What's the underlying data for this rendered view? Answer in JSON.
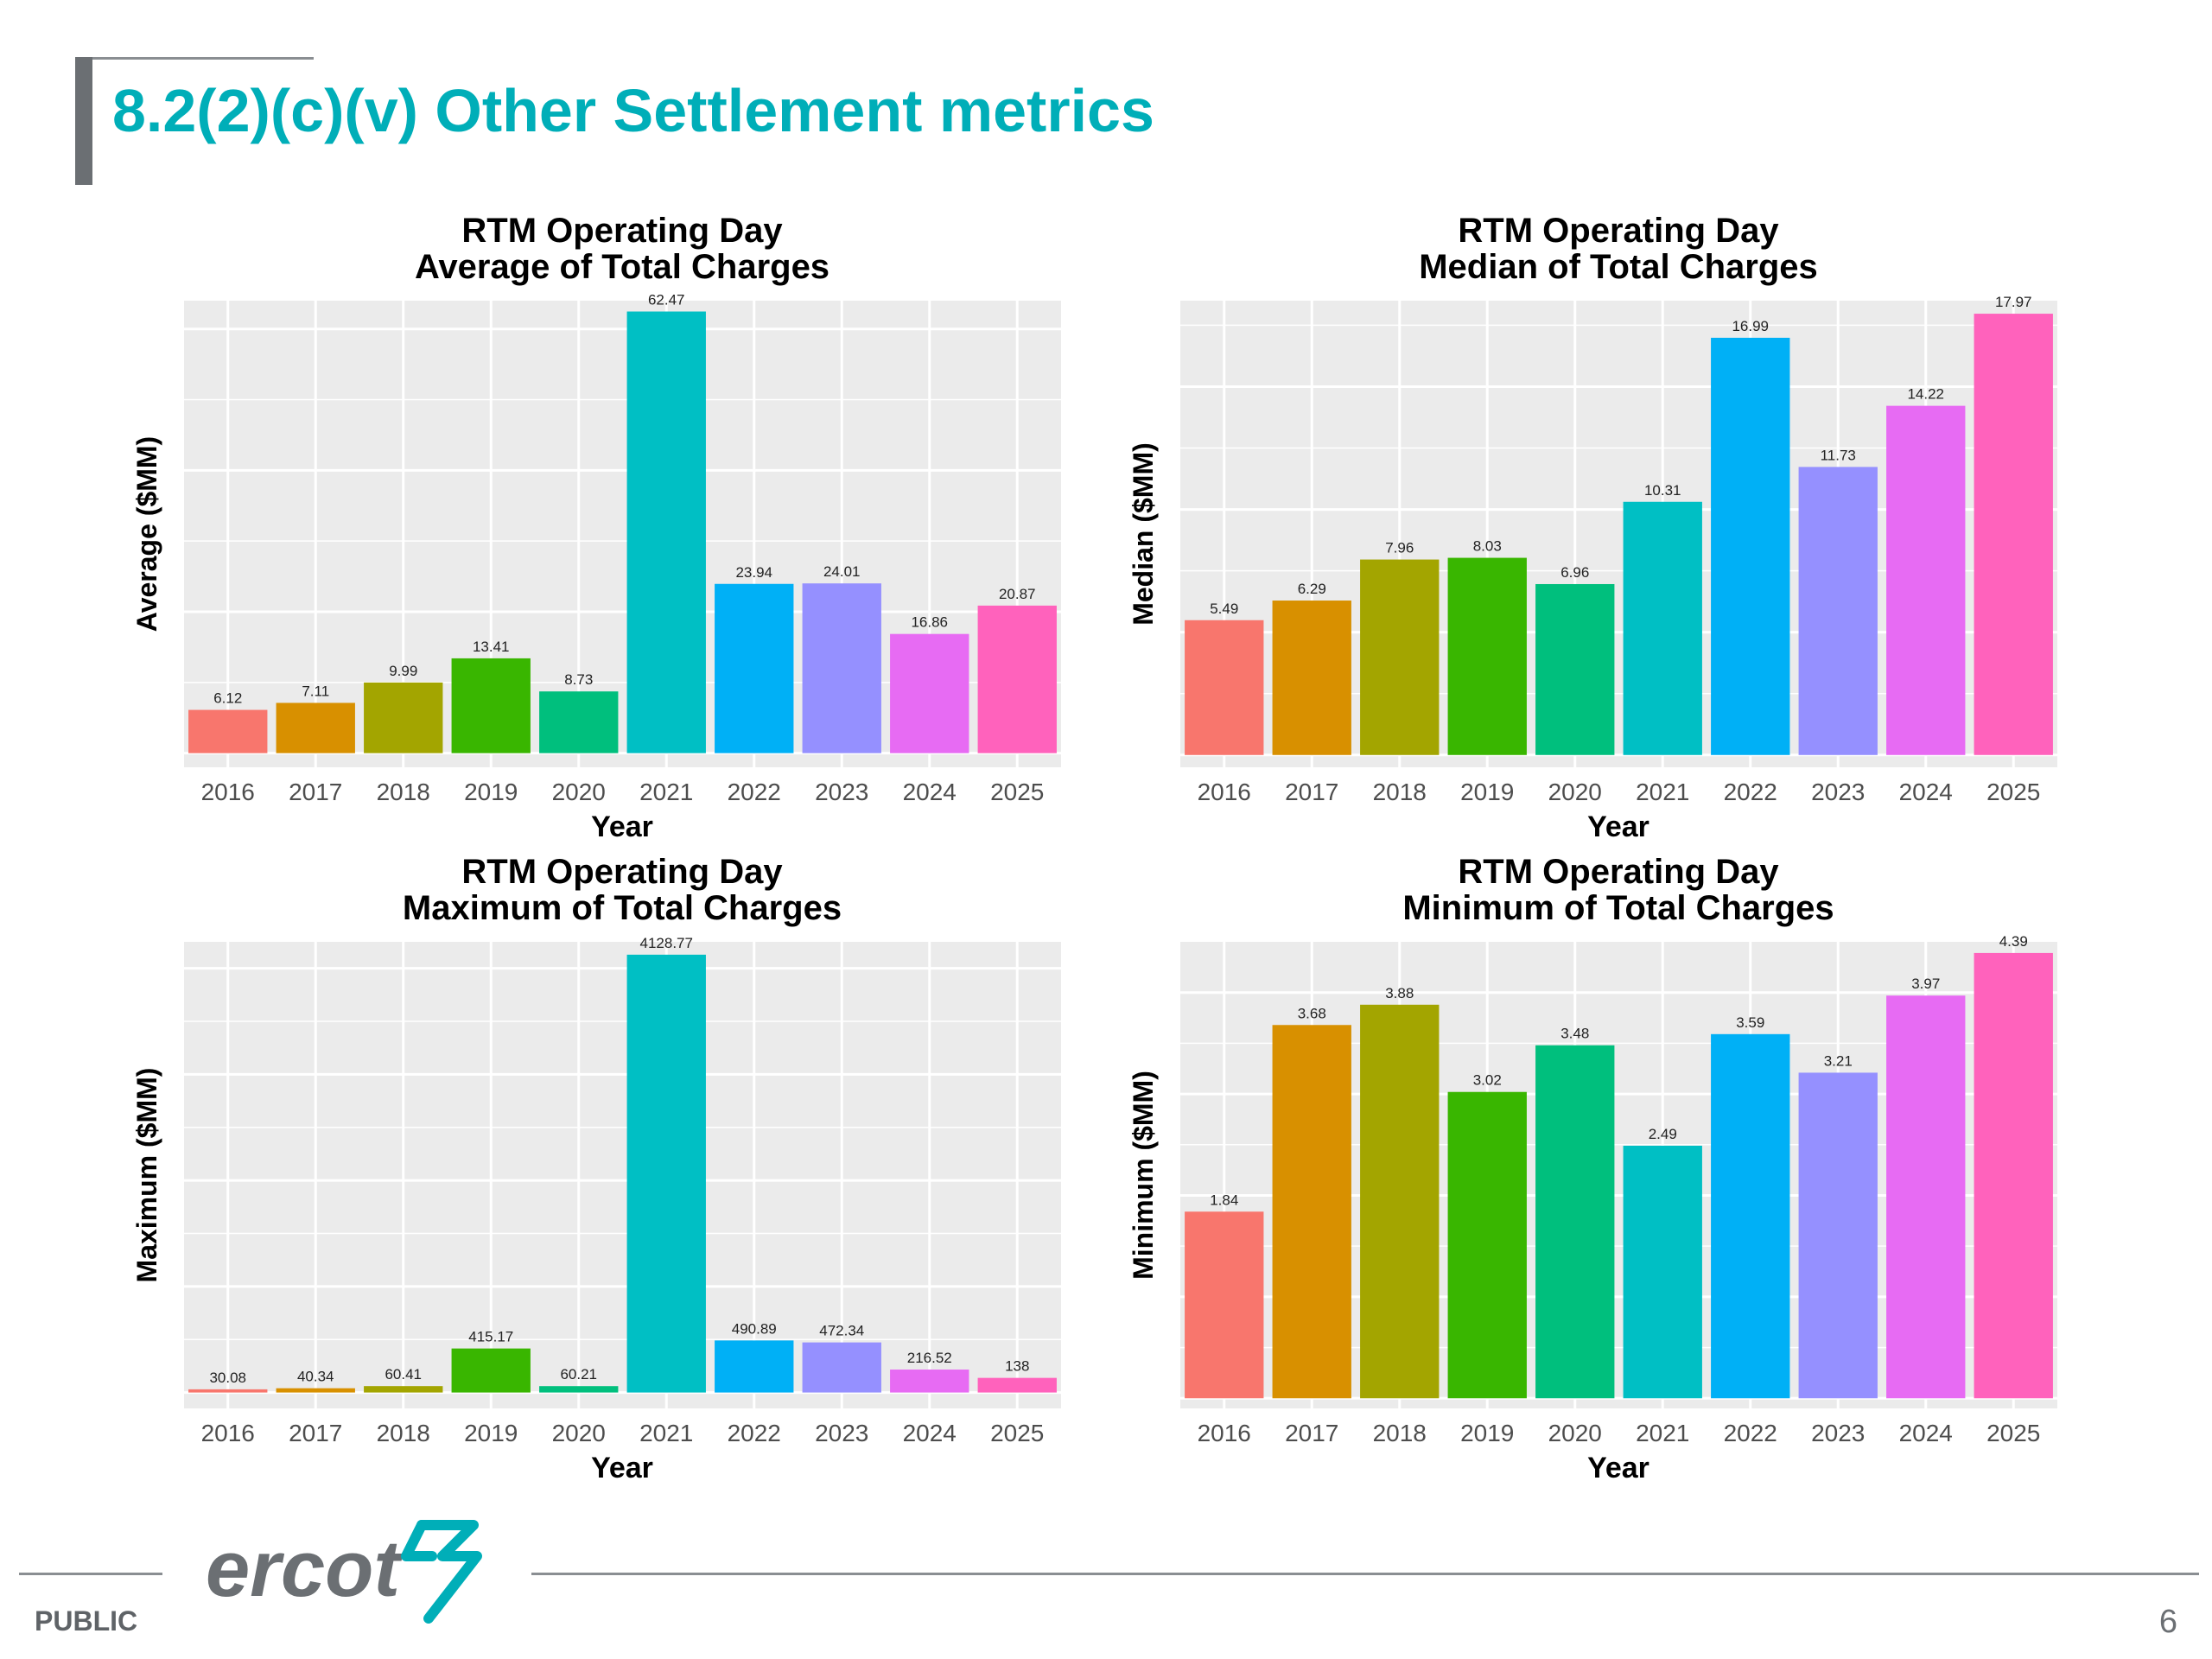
{
  "slide": {
    "title": "8.2(2)(c)(v) Other Settlement metrics",
    "footer_label": "PUBLIC",
    "page_number": "6",
    "logo_text": "ercot"
  },
  "chart_data": [
    {
      "type": "bar",
      "title": [
        "RTM Operating Day",
        "Average of Total Charges"
      ],
      "xlabel": "Year",
      "ylabel": "Average ($MM)",
      "categories": [
        "2016",
        "2017",
        "2018",
        "2019",
        "2020",
        "2021",
        "2022",
        "2023",
        "2024",
        "2025"
      ],
      "values": [
        6.12,
        7.11,
        9.99,
        13.41,
        8.73,
        62.47,
        23.94,
        24.01,
        16.86,
        20.87
      ],
      "value_labels": [
        "6.12",
        "7.11",
        "9.99",
        "13.41",
        "8.73",
        "62.47",
        "23.94",
        "24.01",
        "16.86",
        "20.87"
      ],
      "ylim": [
        -2,
        64
      ],
      "ygrid_major": [
        0,
        20,
        40,
        60
      ],
      "y_tick_labels_shown": false,
      "grid": true
    },
    {
      "type": "bar",
      "title": [
        "RTM Operating Day",
        "Median of Total Charges"
      ],
      "xlabel": "Year",
      "ylabel": "Median ($MM)",
      "categories": [
        "2016",
        "2017",
        "2018",
        "2019",
        "2020",
        "2021",
        "2022",
        "2023",
        "2024",
        "2025"
      ],
      "values": [
        5.49,
        6.29,
        7.96,
        8.03,
        6.96,
        10.31,
        16.99,
        11.73,
        14.22,
        17.97
      ],
      "value_labels": [
        "5.49",
        "6.29",
        "7.96",
        "8.03",
        "6.96",
        "10.31",
        "16.99",
        "11.73",
        "14.22",
        "17.97"
      ],
      "ylim": [
        -0.5,
        18.5
      ],
      "ygrid_major": [
        0,
        5,
        10,
        15
      ],
      "y_tick_labels_shown": false,
      "grid": true
    },
    {
      "type": "bar",
      "title": [
        "RTM Operating Day",
        "Maximum of Total Charges"
      ],
      "xlabel": "Year",
      "ylabel": "Maximum ($MM)",
      "categories": [
        "2016",
        "2017",
        "2018",
        "2019",
        "2020",
        "2021",
        "2022",
        "2023",
        "2024",
        "2025"
      ],
      "values": [
        30.08,
        40.34,
        60.41,
        415.17,
        60.21,
        4128.77,
        490.89,
        472.34,
        216.52,
        138
      ],
      "value_labels": [
        "30.08",
        "40.34",
        "60.41",
        "415.17",
        "60.21",
        "4128.77",
        "490.89",
        "472.34",
        "216.52",
        "138"
      ],
      "ylim": [
        -150,
        4250
      ],
      "ygrid_major": [
        0,
        1000,
        2000,
        3000,
        4000
      ],
      "y_tick_labels_shown": false,
      "grid": true
    },
    {
      "type": "bar",
      "title": [
        "RTM Operating Day",
        "Minimum of Total Charges"
      ],
      "xlabel": "Year",
      "ylabel": "Minimum ($MM)",
      "categories": [
        "2016",
        "2017",
        "2018",
        "2019",
        "2020",
        "2021",
        "2022",
        "2023",
        "2024",
        "2025"
      ],
      "values": [
        1.84,
        3.68,
        3.88,
        3.02,
        3.48,
        2.49,
        3.59,
        3.21,
        3.97,
        4.39
      ],
      "value_labels": [
        "1.84",
        "3.68",
        "3.88",
        "3.02",
        "3.48",
        "2.49",
        "3.59",
        "3.21",
        "3.97",
        "4.39"
      ],
      "ylim": [
        -0.1,
        4.5
      ],
      "ygrid_major": [
        0,
        1,
        2,
        3,
        4
      ],
      "y_tick_labels_shown": false,
      "grid": true
    }
  ],
  "colors": {
    "title": "#00aeb8",
    "panel_bg": "#ebebeb",
    "gridline": "#ffffff",
    "bars": [
      "#f8766d",
      "#d89000",
      "#a3a500",
      "#39b600",
      "#00bf7d",
      "#00bfc4",
      "#00b0f6",
      "#9590ff",
      "#e76bf3",
      "#ff62bc"
    ],
    "logo_text": "#6b6f73",
    "logo_mark": "#00aeb8"
  }
}
